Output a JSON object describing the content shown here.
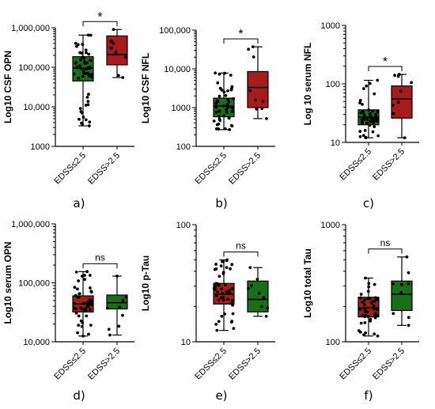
{
  "colors": {
    "green": "#1a6e1a",
    "red": "#a61c1c"
  },
  "chart_data": [
    {
      "type": "box",
      "panel_label": "a)",
      "ylabel": "Log10 CSF OPN",
      "scale": "log",
      "ylim": [
        1000,
        1000000
      ],
      "yticks": [
        1000,
        10000,
        100000,
        1000000
      ],
      "ytick_labels": [
        "1000",
        "10,000",
        "100,000",
        "1,000,000"
      ],
      "categories": [
        "EDSS≤2.5",
        "EDSS>2.5"
      ],
      "box_colors": [
        "green",
        "red"
      ],
      "boxes": [
        {
          "min": 3300,
          "q1": 45000,
          "median": 95000,
          "q3": 185000,
          "max": 650000
        },
        {
          "min": 55000,
          "q1": 115000,
          "median": 210000,
          "q3": 620000,
          "max": 900000
        }
      ],
      "significance": "*"
    },
    {
      "type": "box",
      "panel_label": "b)",
      "ylabel": "Log10 CSF NFL",
      "scale": "log",
      "ylim": [
        100,
        100000
      ],
      "yticks": [
        100,
        1000,
        10000,
        100000
      ],
      "ytick_labels": [
        "100",
        "1000",
        "10,000",
        "100,000"
      ],
      "categories": [
        "EDSS≤2.5",
        "EDSS>2.5"
      ],
      "box_colors": [
        "green",
        "red"
      ],
      "boxes": [
        {
          "min": 270,
          "q1": 580,
          "median": 1100,
          "q3": 1750,
          "max": 7800
        },
        {
          "min": 520,
          "q1": 1000,
          "median": 3300,
          "q3": 8500,
          "max": 37000
        }
      ],
      "significance": "*"
    },
    {
      "type": "box",
      "panel_label": "c)",
      "ylabel": "Log 10 serum NFL",
      "scale": "log",
      "ylim": [
        10,
        1000
      ],
      "yticks": [
        10,
        100,
        1000
      ],
      "ytick_labels": [
        "10",
        "100",
        "1000"
      ],
      "categories": [
        "EDSS≤2.5",
        "EDSS>2.5"
      ],
      "box_colors": [
        "green",
        "red"
      ],
      "boxes": [
        {
          "min": 12,
          "q1": 20,
          "median": 27,
          "q3": 36,
          "max": 115
        },
        {
          "min": 12,
          "q1": 26,
          "median": 55,
          "q3": 92,
          "max": 145
        }
      ],
      "significance": "*"
    },
    {
      "type": "box",
      "panel_label": "d)",
      "ylabel": "Log10 serum OPN",
      "scale": "log",
      "ylim": [
        10000,
        1000000
      ],
      "yticks": [
        10000,
        100000,
        1000000
      ],
      "ytick_labels": [
        "10,000",
        "100,000",
        "1,000,000"
      ],
      "categories": [
        "EDSS≤2.5",
        "EDSS>2.5"
      ],
      "box_colors": [
        "red",
        "green"
      ],
      "boxes": [
        {
          "min": 12500,
          "q1": 32000,
          "median": 44000,
          "q3": 60000,
          "max": 155000
        },
        {
          "min": 13000,
          "q1": 36000,
          "median": 46000,
          "q3": 62000,
          "max": 130000
        }
      ],
      "significance": "ns"
    },
    {
      "type": "box",
      "panel_label": "e)",
      "ylabel": "Log10 p-Tau",
      "scale": "log",
      "ylim": [
        10,
        100
      ],
      "yticks": [
        10,
        100
      ],
      "ytick_labels": [
        "10",
        "100"
      ],
      "categories": [
        "EDSS≤2.5",
        "EDSS>2.5"
      ],
      "box_colors": [
        "red",
        "green"
      ],
      "boxes": [
        {
          "min": 12.5,
          "q1": 21,
          "median": 25.5,
          "q3": 31.5,
          "max": 50
        },
        {
          "min": 16.5,
          "q1": 18,
          "median": 23,
          "q3": 33,
          "max": 43
        }
      ],
      "significance": "ns"
    },
    {
      "type": "box",
      "panel_label": "f)",
      "ylabel": "Log10 total Tau",
      "scale": "log",
      "ylim": [
        100,
        1000
      ],
      "yticks": [
        100,
        1000
      ],
      "ytick_labels": [
        "100",
        "1000"
      ],
      "categories": [
        "EDSS≤2.5",
        "EDSS>2.5"
      ],
      "box_colors": [
        "red",
        "green"
      ],
      "boxes": [
        {
          "min": 112,
          "q1": 163,
          "median": 195,
          "q3": 240,
          "max": 350
        },
        {
          "min": 138,
          "q1": 185,
          "median": 255,
          "q3": 330,
          "max": 530
        }
      ],
      "significance": "ns"
    }
  ]
}
